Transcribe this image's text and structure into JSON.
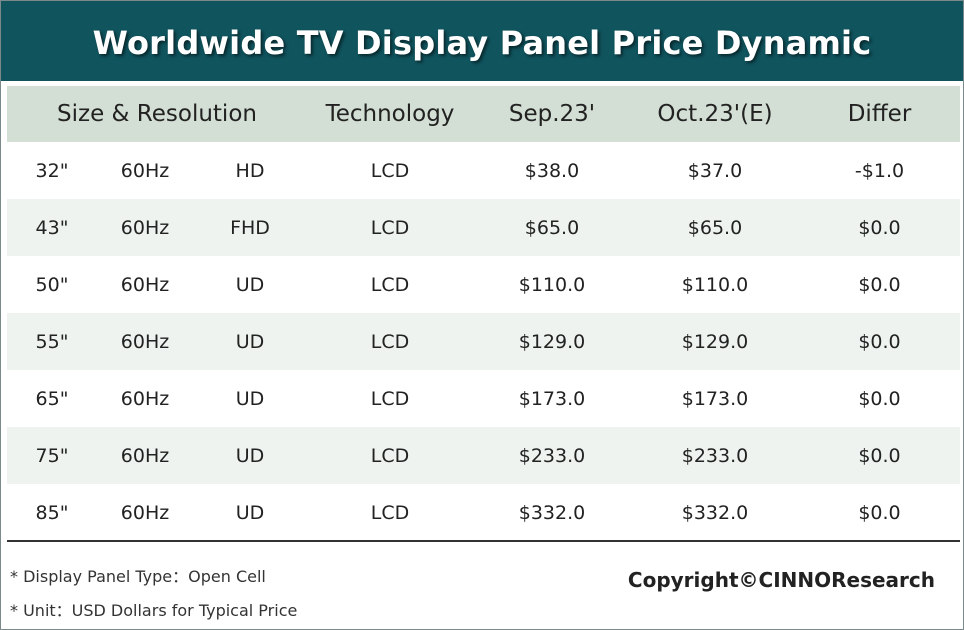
{
  "title": "Worldwide TV Display Panel Price Dynamic",
  "chart_data": {
    "type": "table",
    "title": "Worldwide TV Display Panel Price Dynamic",
    "columns": [
      "Size & Resolution",
      "Technology",
      "Sep.23'",
      "Oct.23'(E)",
      "Differ"
    ],
    "rows": [
      {
        "size": "32\"",
        "freq": "60Hz",
        "res": "HD",
        "tech": "LCD",
        "sep": "$38.0",
        "oct": "$37.0",
        "differ": "-$1.0"
      },
      {
        "size": "43\"",
        "freq": "60Hz",
        "res": "FHD",
        "tech": "LCD",
        "sep": "$65.0",
        "oct": "$65.0",
        "differ": "$0.0"
      },
      {
        "size": "50\"",
        "freq": "60Hz",
        "res": "UD",
        "tech": "LCD",
        "sep": "$110.0",
        "oct": "$110.0",
        "differ": "$0.0"
      },
      {
        "size": "55\"",
        "freq": "60Hz",
        "res": "UD",
        "tech": "LCD",
        "sep": "$129.0",
        "oct": "$129.0",
        "differ": "$0.0"
      },
      {
        "size": "65\"",
        "freq": "60Hz",
        "res": "UD",
        "tech": "LCD",
        "sep": "$173.0",
        "oct": "$173.0",
        "differ": "$0.0"
      },
      {
        "size": "75\"",
        "freq": "60Hz",
        "res": "UD",
        "tech": "LCD",
        "sep": "$233.0",
        "oct": "$233.0",
        "differ": "$0.0"
      },
      {
        "size": "85\"",
        "freq": "60Hz",
        "res": "UD",
        "tech": "LCD",
        "sep": "$332.0",
        "oct": "$332.0",
        "differ": "$0.0"
      }
    ]
  },
  "notes": [
    "* Display Panel Type：Open Cell",
    "* Unit：USD Dollars for Typical Price"
  ],
  "copyright": "Copyright©CINNOResearch",
  "colors": {
    "banner": "#10545e",
    "header_bg": "#d3dfd4",
    "alt_row_bg": "#eef3ef"
  }
}
